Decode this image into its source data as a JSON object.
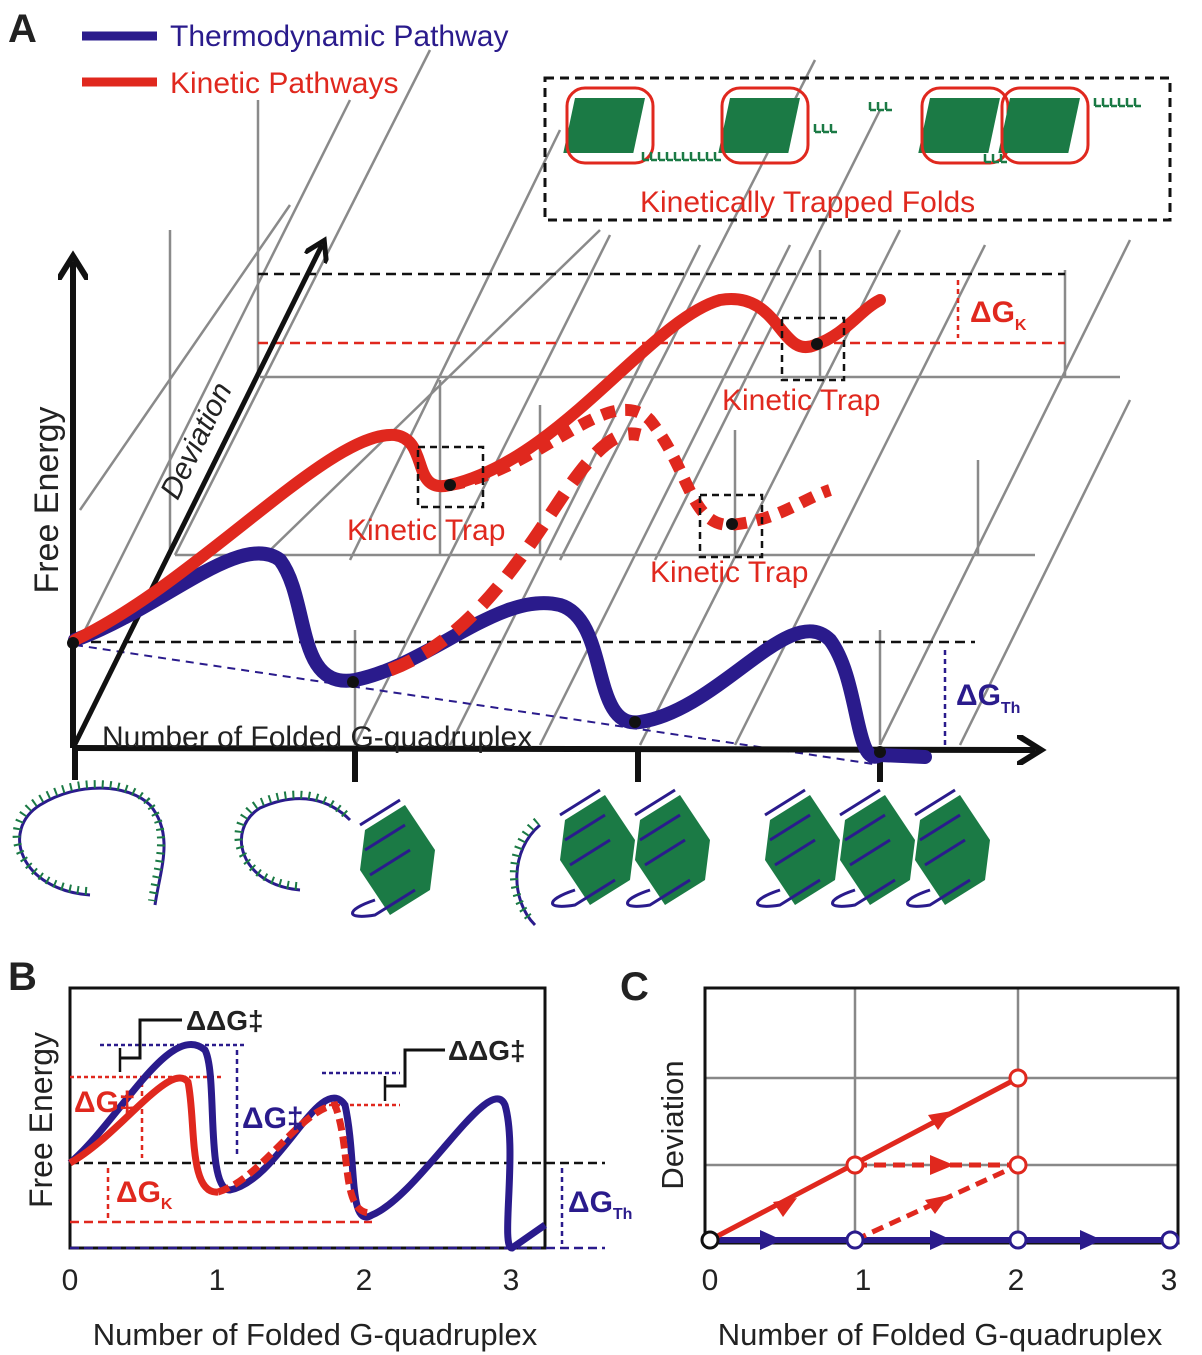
{
  "panel_a": {
    "label": "A",
    "legend": [
      "Thermodynamic Pathway",
      "Kinetic Pathways"
    ],
    "inset_title": "Kinetically Trapped Folds",
    "y_axis": "Free Energy",
    "depth_axis": "Deviation",
    "x_axis": "Number of Folded G-quadruplex",
    "traps": [
      "Kinetic Trap",
      "Kinetic Trap",
      "Kinetic Trap"
    ],
    "delta_k": {
      "main": "ΔG",
      "sub": "K"
    },
    "delta_th": {
      "main": "ΔG",
      "sub": "Th"
    }
  },
  "panel_b": {
    "label": "B",
    "y_axis": "Free Energy",
    "x_axis": "Number of Folded G-quadruplex",
    "xticks": [
      0,
      1,
      2,
      3
    ],
    "ddg": [
      "ΔΔG‡",
      "ΔΔG‡"
    ],
    "dg_blue": "ΔG‡",
    "dg_red": "ΔG‡",
    "delta_k": {
      "main": "ΔG",
      "sub": "K"
    },
    "delta_th": {
      "main": "ΔG",
      "sub": "Th"
    }
  },
  "panel_c": {
    "label": "C",
    "y_axis": "Deviation",
    "x_axis": "Number of Folded G-quadruplex",
    "xticks": [
      0,
      1,
      2,
      3
    ]
  }
}
